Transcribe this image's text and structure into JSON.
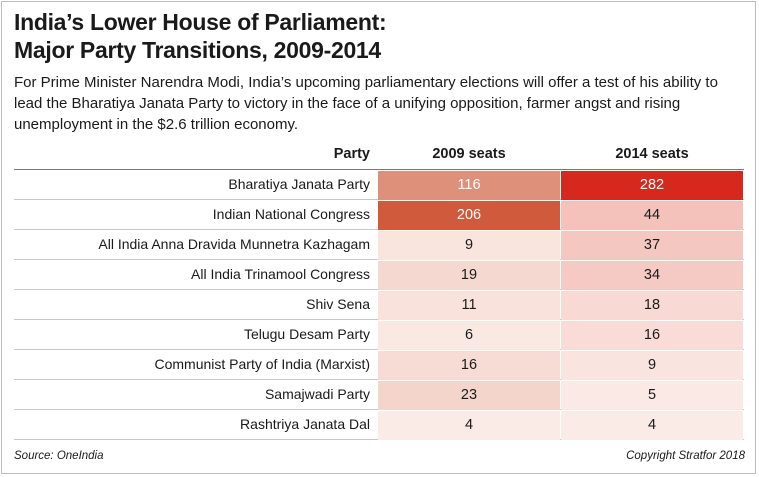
{
  "title_line1": "India’s Lower House of Parliament:",
  "title_line2": "Major Party Transitions, 2009-2014",
  "subtitle": "For Prime Minister Narendra Modi, India’s upcoming parliamentary elections will offer a test of his ability to lead the Bharatiya Janata Party to victory in the face of a unifying opposition, farmer angst and rising unemployment in the $2.6 trillion economy.",
  "source": "Source: OneIndia",
  "copyright": "Copyright Stratfor 2018",
  "heat_colors": {
    "low": "#fdf3ef",
    "high_2009": "#cf5a3c",
    "high_2014": "#d7281e"
  },
  "chart_data": {
    "type": "table",
    "columns": [
      "Party",
      "2009 seats",
      "2014 seats"
    ],
    "rows": [
      {
        "party": "Bharatiya Janata Party",
        "seats_2009": 116,
        "seats_2014": 282
      },
      {
        "party": "Indian National Congress",
        "seats_2009": 206,
        "seats_2014": 44
      },
      {
        "party": "All India Anna Dravida Munnetra Kazhagam",
        "seats_2009": 9,
        "seats_2014": 37
      },
      {
        "party": "All India Trinamool Congress",
        "seats_2009": 19,
        "seats_2014": 34
      },
      {
        "party": "Shiv Sena",
        "seats_2009": 11,
        "seats_2014": 18
      },
      {
        "party": "Telugu Desam Party",
        "seats_2009": 6,
        "seats_2014": 16
      },
      {
        "party": "Communist Party of India (Marxist)",
        "seats_2009": 16,
        "seats_2014": 9
      },
      {
        "party": "Samajwadi Party",
        "seats_2009": 23,
        "seats_2014": 5
      },
      {
        "party": "Rashtriya Janata Dal",
        "seats_2009": 4,
        "seats_2014": 4
      }
    ]
  }
}
